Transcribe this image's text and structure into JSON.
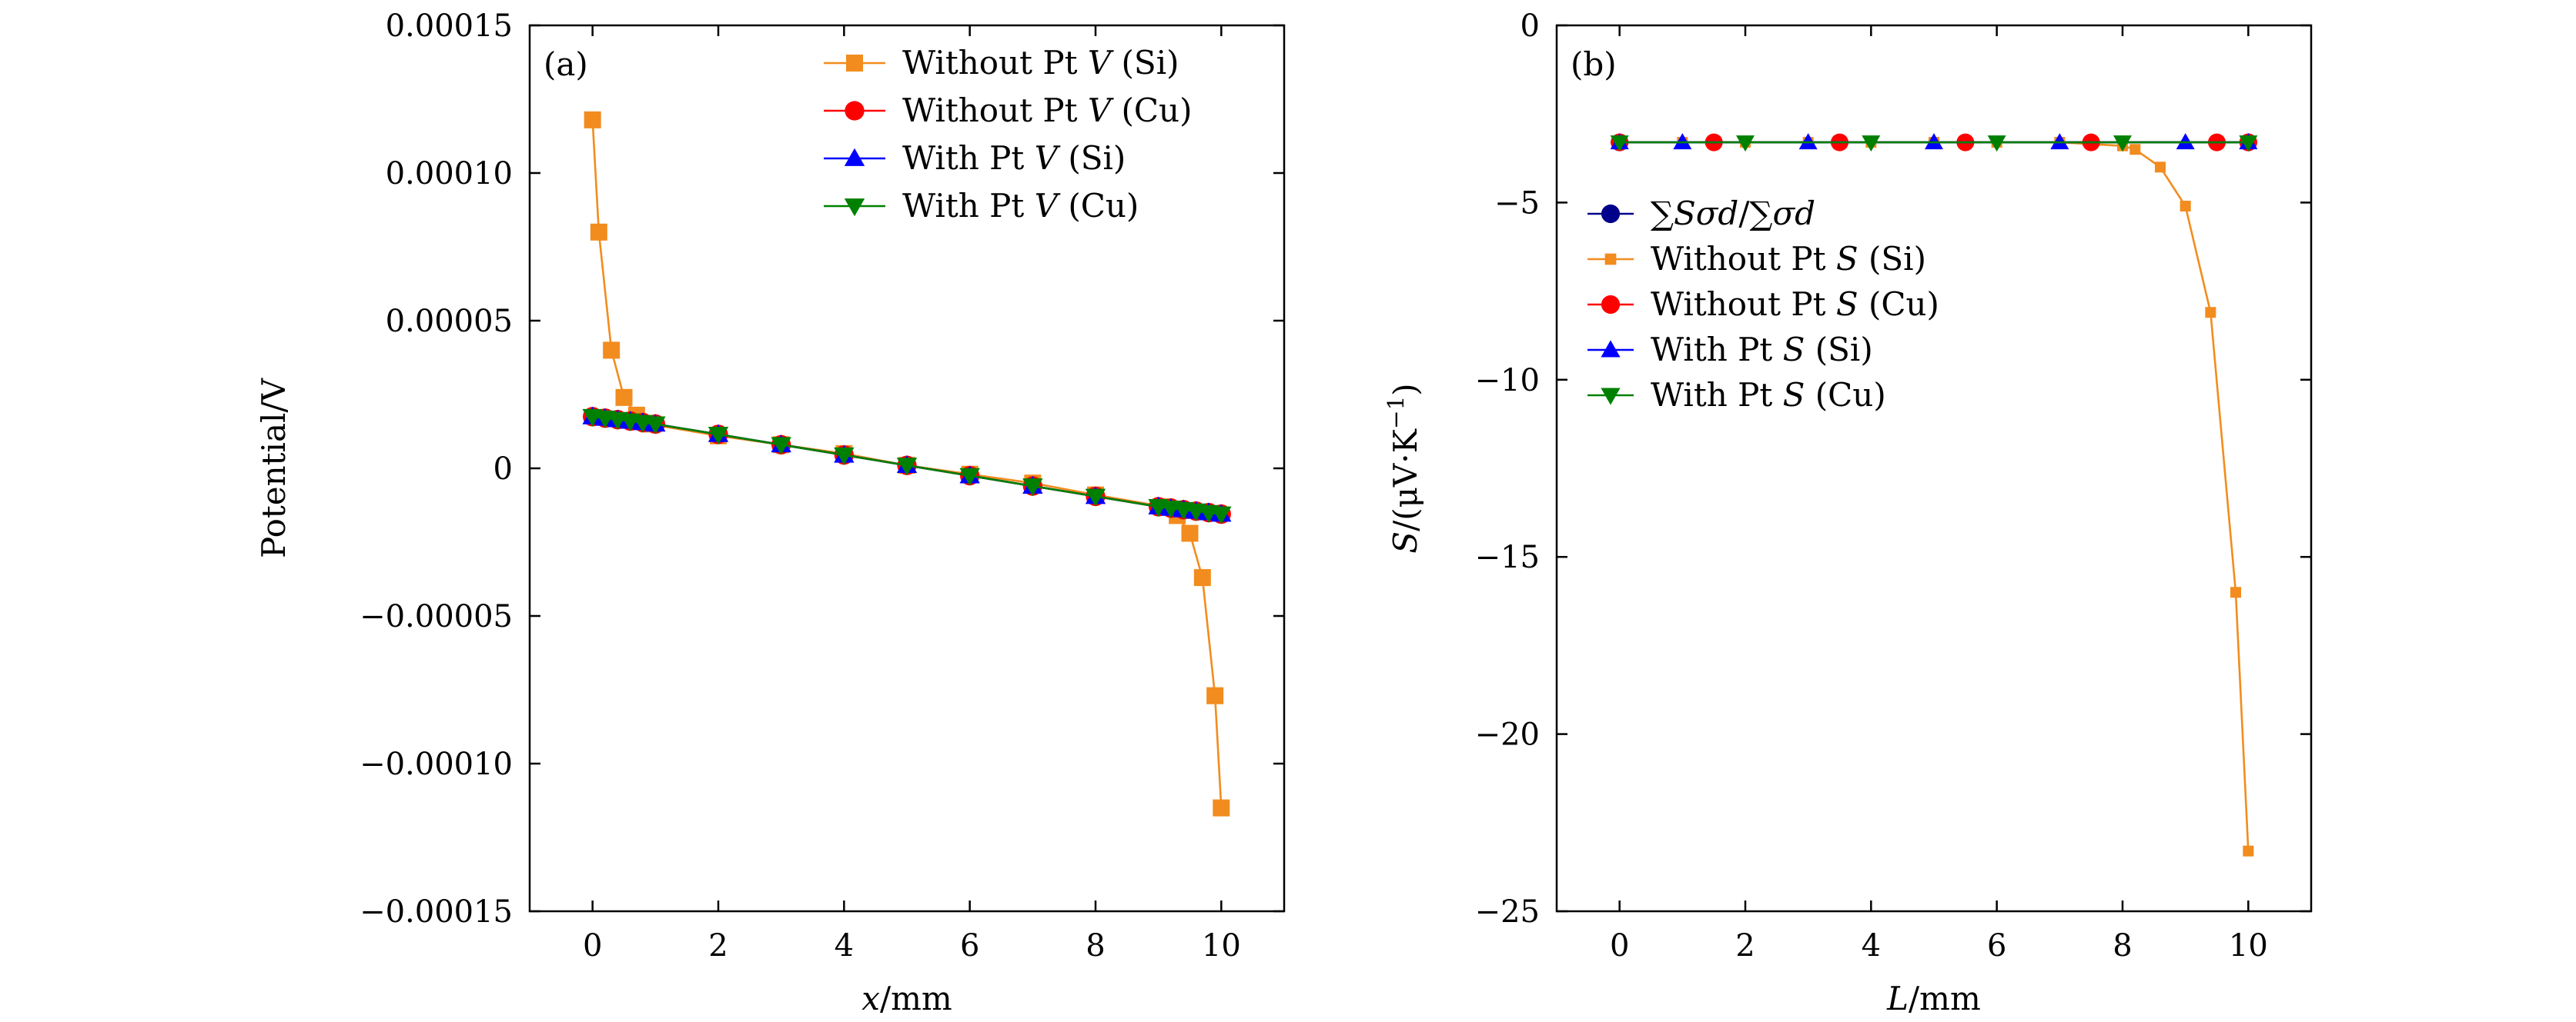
{
  "chart_data": [
    {
      "type": "line",
      "panel_label": "(a)",
      "xlabel_parts": [
        {
          "t": "x",
          "italic": true
        },
        {
          "t": "/mm",
          "italic": false
        }
      ],
      "ylabel_parts": [
        {
          "t": "Potential/V",
          "italic": false
        }
      ],
      "xlim": [
        -1,
        11
      ],
      "ylim": [
        -0.00015,
        0.00015
      ],
      "xticks": [
        0,
        2,
        4,
        6,
        8,
        10
      ],
      "xtick_labels": [
        "0",
        "2",
        "4",
        "6",
        "8",
        "10"
      ],
      "yticks": [
        0.00015,
        0.0001,
        5e-05,
        0,
        -5e-05,
        -0.0001,
        -0.00015
      ],
      "ytick_labels": [
        "0.00015",
        "0.00010",
        "0.00005",
        "0",
        "−0.00005",
        "−0.00010",
        "−0.00015"
      ],
      "grid": false,
      "legend_position": "top-right",
      "series": [
        {
          "name": "Without Pt V (Si)",
          "name_parts": [
            {
              "t": "Without Pt ",
              "italic": false
            },
            {
              "t": "V",
              "italic": true
            },
            {
              "t": " (Si)",
              "italic": false
            }
          ],
          "color": "#f28c1e",
          "marker": "square",
          "x": [
            0,
            0.1,
            0.3,
            0.5,
            0.7,
            0.9,
            2,
            3,
            4,
            5,
            6,
            7,
            8,
            9.1,
            9.3,
            9.5,
            9.7,
            9.9,
            10
          ],
          "y": [
            0.000118,
            8e-05,
            4e-05,
            2.4e-05,
            1.8e-05,
            1.5e-05,
            1.1e-05,
            8e-06,
            5e-06,
            1e-06,
            -2e-06,
            -5e-06,
            -9e-06,
            -1.3e-05,
            -1.6e-05,
            -2.2e-05,
            -3.7e-05,
            -7.7e-05,
            -0.000115
          ]
        },
        {
          "name": "Without Pt V (Cu)",
          "name_parts": [
            {
              "t": "Without Pt ",
              "italic": false
            },
            {
              "t": "V",
              "italic": true
            },
            {
              "t": " (Cu)",
              "italic": false
            }
          ],
          "color": "#ff0000",
          "marker": "circle",
          "x": [
            0,
            0.2,
            0.4,
            0.6,
            0.8,
            1,
            2,
            3,
            4,
            5,
            6,
            7,
            8,
            9,
            9.2,
            9.4,
            9.6,
            9.8,
            10
          ],
          "y": [
            1.75e-05,
            1.7e-05,
            1.65e-05,
            1.6e-05,
            1.55e-05,
            1.5e-05,
            1.15e-05,
            8e-06,
            4.5e-06,
            1e-06,
            -2.5e-06,
            -6e-06,
            -9.5e-06,
            -1.3e-05,
            -1.35e-05,
            -1.4e-05,
            -1.45e-05,
            -1.5e-05,
            -1.55e-05
          ]
        },
        {
          "name": "With Pt V (Si)",
          "name_parts": [
            {
              "t": "With Pt ",
              "italic": false
            },
            {
              "t": "V",
              "italic": true
            },
            {
              "t": " (Si)",
              "italic": false
            }
          ],
          "color": "#0000ff",
          "marker": "triangle-up",
          "x": [
            0,
            0.2,
            0.4,
            0.6,
            0.8,
            1,
            2,
            3,
            4,
            5,
            6,
            7,
            8,
            9,
            9.2,
            9.4,
            9.6,
            9.8,
            10
          ],
          "y": [
            1.75e-05,
            1.7e-05,
            1.65e-05,
            1.6e-05,
            1.55e-05,
            1.5e-05,
            1.15e-05,
            8e-06,
            4.5e-06,
            1e-06,
            -2.5e-06,
            -6e-06,
            -9.5e-06,
            -1.3e-05,
            -1.35e-05,
            -1.4e-05,
            -1.45e-05,
            -1.5e-05,
            -1.55e-05
          ]
        },
        {
          "name": "With Pt V (Cu)",
          "name_parts": [
            {
              "t": "With Pt ",
              "italic": false
            },
            {
              "t": "V",
              "italic": true
            },
            {
              "t": " (Cu)",
              "italic": false
            }
          ],
          "color": "#008000",
          "marker": "triangle-down",
          "x": [
            0,
            0.2,
            0.4,
            0.6,
            0.8,
            1,
            2,
            3,
            4,
            5,
            6,
            7,
            8,
            9,
            9.2,
            9.4,
            9.6,
            9.8,
            10
          ],
          "y": [
            1.75e-05,
            1.7e-05,
            1.65e-05,
            1.6e-05,
            1.55e-05,
            1.5e-05,
            1.15e-05,
            8e-06,
            4.5e-06,
            1e-06,
            -2.5e-06,
            -6e-06,
            -9.5e-06,
            -1.3e-05,
            -1.35e-05,
            -1.4e-05,
            -1.45e-05,
            -1.5e-05,
            -1.55e-05
          ]
        }
      ]
    },
    {
      "type": "line",
      "panel_label": "(b)",
      "xlabel_parts": [
        {
          "t": "L",
          "italic": true
        },
        {
          "t": "/mm",
          "italic": false
        }
      ],
      "ylabel_parts": [
        {
          "t": "S",
          "italic": true
        },
        {
          "t": "/(μV·K",
          "italic": false
        },
        {
          "t": "−1",
          "italic": false,
          "sup": true
        },
        {
          "t": ")",
          "italic": false
        }
      ],
      "xlim": [
        -1,
        11
      ],
      "ylim": [
        -25,
        0
      ],
      "xticks": [
        0,
        2,
        4,
        6,
        8,
        10
      ],
      "xtick_labels": [
        "0",
        "2",
        "4",
        "6",
        "8",
        "10"
      ],
      "yticks": [
        0,
        -5,
        -10,
        -15,
        -20,
        -25
      ],
      "ytick_labels": [
        "0",
        "−5",
        "−10",
        "−15",
        "−20",
        "−25"
      ],
      "grid": false,
      "legend_position": "top-left",
      "series": [
        {
          "name": "∑Sσd/∑σd",
          "name_parts": [
            {
              "t": "∑",
              "italic": false
            },
            {
              "t": "Sσd",
              "italic": true
            },
            {
              "t": "/∑",
              "italic": false
            },
            {
              "t": "σd",
              "italic": true
            }
          ],
          "color": "#00008b",
          "marker": "circle",
          "x": [
            0,
            10
          ],
          "y": [
            -3.3,
            -3.3
          ]
        },
        {
          "name": "Without Pt S (Si)",
          "name_parts": [
            {
              "t": "Without Pt ",
              "italic": false
            },
            {
              "t": "S",
              "italic": true
            },
            {
              "t": " (Si)",
              "italic": false
            }
          ],
          "color": "#f28c1e",
          "marker": "square-small",
          "x": [
            0,
            1,
            2,
            3,
            4,
            5,
            6,
            7,
            8,
            8.2,
            8.6,
            9,
            9.4,
            9.8,
            10
          ],
          "y": [
            -3.3,
            -3.3,
            -3.3,
            -3.3,
            -3.3,
            -3.3,
            -3.3,
            -3.3,
            -3.4,
            -3.5,
            -4.0,
            -5.1,
            -8.1,
            -16.0,
            -23.3
          ]
        },
        {
          "name": "Without Pt S (Cu)",
          "name_parts": [
            {
              "t": "Without Pt ",
              "italic": false
            },
            {
              "t": "S",
              "italic": true
            },
            {
              "t": " (Cu)",
              "italic": false
            }
          ],
          "color": "#ff0000",
          "marker": "circle",
          "x": [
            0,
            1.5,
            3.5,
            5.5,
            7.5,
            9.5,
            10
          ],
          "y": [
            -3.3,
            -3.3,
            -3.3,
            -3.3,
            -3.3,
            -3.3,
            -3.3
          ]
        },
        {
          "name": "With Pt S (Si)",
          "name_parts": [
            {
              "t": "With Pt ",
              "italic": false
            },
            {
              "t": "S",
              "italic": true
            },
            {
              "t": " (Si)",
              "italic": false
            }
          ],
          "color": "#0000ff",
          "marker": "triangle-up",
          "x": [
            0,
            1,
            3,
            5,
            7,
            9,
            10
          ],
          "y": [
            -3.3,
            -3.3,
            -3.3,
            -3.3,
            -3.3,
            -3.3,
            -3.3
          ]
        },
        {
          "name": "With Pt S (Cu)",
          "name_parts": [
            {
              "t": "With Pt ",
              "italic": false
            },
            {
              "t": "S",
              "italic": true
            },
            {
              "t": " (Cu)",
              "italic": false
            }
          ],
          "color": "#008000",
          "marker": "triangle-down",
          "x": [
            0,
            2,
            4,
            6,
            8,
            10
          ],
          "y": [
            -3.3,
            -3.3,
            -3.3,
            -3.3,
            -3.3,
            -3.3
          ]
        }
      ]
    }
  ]
}
